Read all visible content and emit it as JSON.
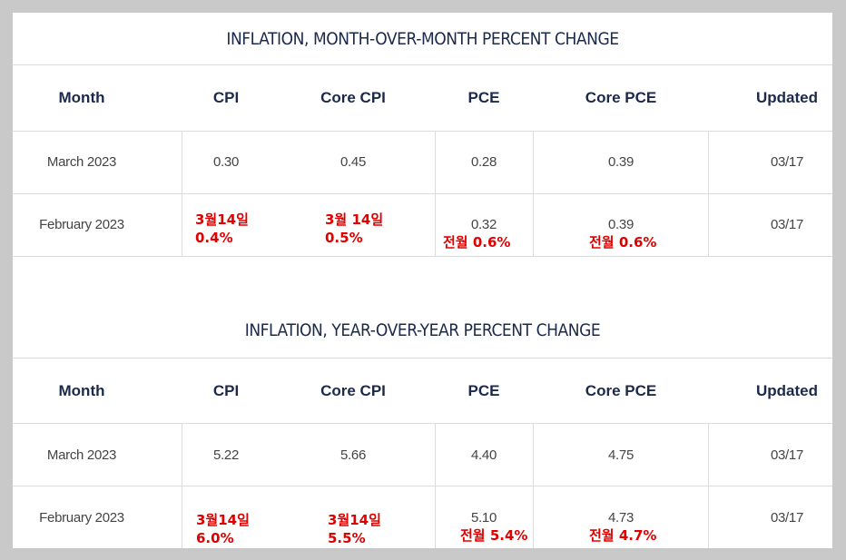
{
  "tables": [
    {
      "title": "INFLATION, MONTH-OVER-MONTH PERCENT CHANGE",
      "headers": [
        "Month",
        "CPI",
        "Core CPI",
        "PCE",
        "Core PCE",
        "Updated"
      ],
      "rows": [
        {
          "month": "March 2023",
          "cpi": "0.30",
          "core_cpi": "0.45",
          "pce": "0.28",
          "core_pce": "0.39",
          "updated": "03/17"
        },
        {
          "month": "February 2023",
          "cpi": "",
          "core_cpi": "",
          "pce": "0.32",
          "core_pce": "0.39",
          "updated": "03/17"
        }
      ],
      "notes": {
        "cpi": [
          "3월14일",
          "0.4%"
        ],
        "core_cpi": [
          "3월 14일",
          "0.5%"
        ],
        "pce": [
          "전월 0.6%"
        ],
        "core_pce": [
          "전월 0.6%"
        ]
      }
    },
    {
      "title": "INFLATION, YEAR-OVER-YEAR PERCENT CHANGE",
      "headers": [
        "Month",
        "CPI",
        "Core CPI",
        "PCE",
        "Core PCE",
        "Updated"
      ],
      "rows": [
        {
          "month": "March 2023",
          "cpi": "5.22",
          "core_cpi": "5.66",
          "pce": "4.40",
          "core_pce": "4.75",
          "updated": "03/17"
        },
        {
          "month": "February 2023",
          "cpi": "",
          "core_cpi": "",
          "pce": "5.10",
          "core_pce": "4.73",
          "updated": "03/17"
        }
      ],
      "notes": {
        "cpi": [
          "3월14일",
          "6.0%"
        ],
        "core_cpi": [
          "3월14일",
          "5.5%"
        ],
        "pce": [
          "전월 5.4%"
        ],
        "core_pce": [
          "전월 4.7%"
        ]
      }
    }
  ],
  "colors": {
    "heading": "#1b2a4a",
    "cell_text": "#444444",
    "annotation": "#e00000",
    "border": "#dcdcdc"
  }
}
